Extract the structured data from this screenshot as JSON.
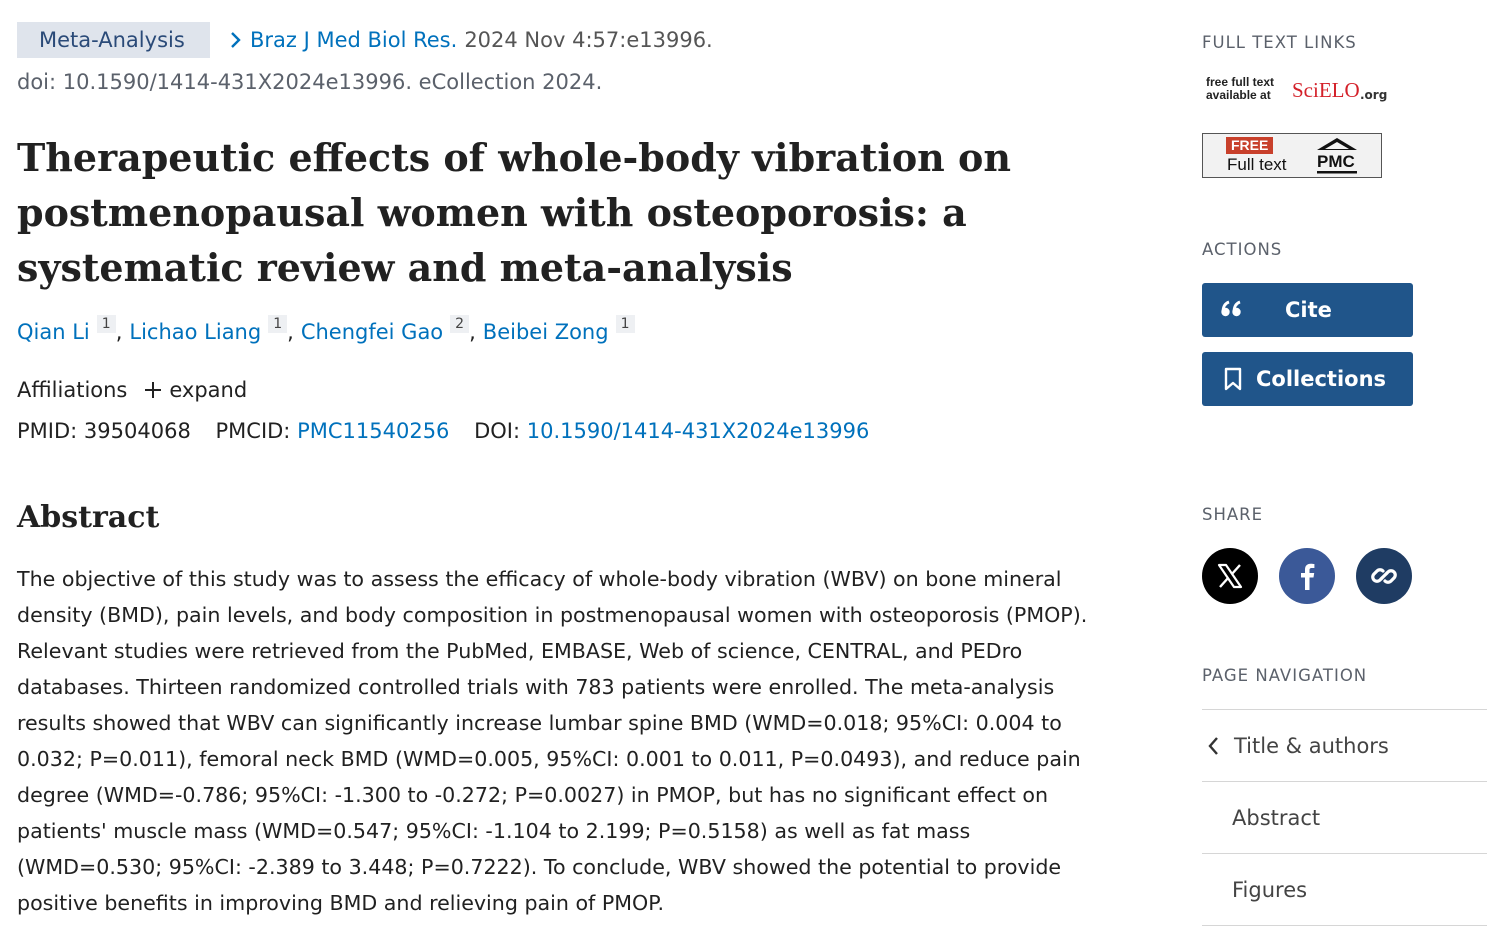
{
  "citation": {
    "type_badge": "Meta-Analysis",
    "journal": "Braz J Med Biol Res.",
    "pub_date": "2024 Nov 4:57:e13996.",
    "doi_line": "doi: 10.1590/1414-431X2024e13996. eCollection 2024."
  },
  "article": {
    "title": "Therapeutic effects of whole-body vibration on postmenopausal women with osteoporosis: a systematic review and meta-analysis",
    "authors": [
      {
        "name": "Qian Li",
        "affil": "1"
      },
      {
        "name": "Lichao Liang",
        "affil": "1"
      },
      {
        "name": "Chengfei Gao",
        "affil": "2"
      },
      {
        "name": "Beibei Zong",
        "affil": "1"
      }
    ],
    "affiliations_label": "Affiliations",
    "expand_label": "expand",
    "identifiers": {
      "pmid_label": "PMID:",
      "pmid": "39504068",
      "pmcid_label": "PMCID:",
      "pmcid": "PMC11540256",
      "doi_label": "DOI:",
      "doi": "10.1590/1414-431X2024e13996"
    }
  },
  "abstract": {
    "heading": "Abstract",
    "text": "The objective of this study was to assess the efficacy of whole-body vibration (WBV) on bone mineral density (BMD), pain levels, and body composition in postmenopausal women with osteoporosis (PMOP). Relevant studies were retrieved from the PubMed, EMBASE, Web of science, CENTRAL, and PEDro databases. Thirteen randomized controlled trials with 783 patients were enrolled. The meta-analysis results showed that WBV can significantly increase lumbar spine BMD (WMD=0.018; 95%CI: 0.004 to 0.032; P=0.011), femoral neck BMD (WMD=0.005, 95%CI: 0.001 to 0.011, P=0.0493), and reduce pain degree (WMD=-0.786; 95%CI: -1.300 to -0.272; P=0.0027) in PMOP, but has no significant effect on patients' muscle mass (WMD=0.547; 95%CI: -1.104 to 2.199; P=0.5158) as well as fat mass (WMD=0.530; 95%CI: -2.389 to 3.448; P=0.7222). To conclude, WBV showed the potential to provide positive benefits in improving BMD and relieving pain of PMOP."
  },
  "sidebar": {
    "full_text_links_heading": "FULL TEXT LINKS",
    "scielo": {
      "line1": "free full text",
      "line2": "available at",
      "brand": "SciELO",
      "org": ".org"
    },
    "pmc": {
      "free": "FREE",
      "full_text": "Full text",
      "logo": "PMC"
    },
    "actions_heading": "ACTIONS",
    "cite_label": "Cite",
    "collections_label": "Collections",
    "share_heading": "SHARE",
    "page_nav_heading": "PAGE NAVIGATION",
    "nav_items": [
      "Title & authors",
      "Abstract",
      "Figures"
    ]
  },
  "colors": {
    "link": "#0071bc",
    "button": "#20558a",
    "facebook": "#3b5998",
    "link_share": "#1f3c63"
  }
}
